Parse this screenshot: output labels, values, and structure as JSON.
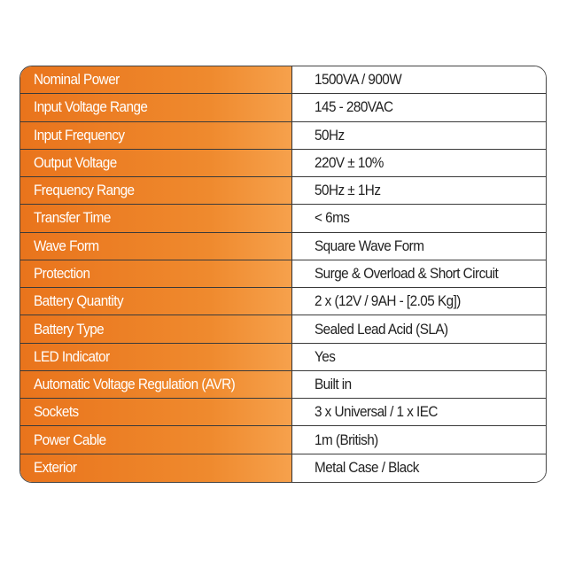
{
  "colors": {
    "label_bg": "#e9741c",
    "label_text": "#ffffff",
    "value_text": "#222222"
  },
  "specs": [
    {
      "label": "Nominal Power",
      "value": "1500VA / 900W"
    },
    {
      "label": "Input Voltage Range",
      "value": "145 - 280VAC"
    },
    {
      "label": "Input Frequency",
      "value": "50Hz"
    },
    {
      "label": "Output Voltage",
      "value": "220V ± 10%"
    },
    {
      "label": "Frequency Range",
      "value": "50Hz ± 1Hz"
    },
    {
      "label": "Transfer Time",
      "value": "< 6ms"
    },
    {
      "label": "Wave Form",
      "value": "Square Wave Form"
    },
    {
      "label": "Protection",
      "value": "Surge & Overload & Short Circuit"
    },
    {
      "label": "Battery Quantity",
      "value": "2 x (12V / 9AH - [2.05 Kg])"
    },
    {
      "label": "Battery Type",
      "value": "Sealed Lead Acid (SLA)"
    },
    {
      "label": "LED Indicator",
      "value": "Yes"
    },
    {
      "label": "Automatic Voltage Regulation (AVR)",
      "value": "Built in"
    },
    {
      "label": "Sockets",
      "value": "3 x Universal / 1 x IEC"
    },
    {
      "label": "Power Cable",
      "value": "1m (British)"
    },
    {
      "label": "Exterior",
      "value": "Metal Case / Black"
    }
  ]
}
